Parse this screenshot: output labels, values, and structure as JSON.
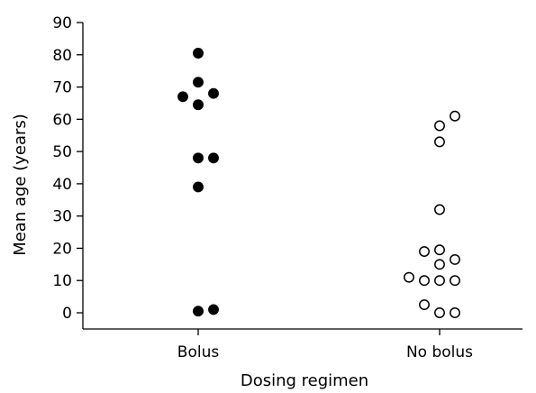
{
  "chart_data": {
    "type": "scatter",
    "xlabel": "Dosing regimen",
    "ylabel": "Mean age (years)",
    "categories": [
      "Bolus",
      "No bolus"
    ],
    "ylim": [
      0,
      90
    ],
    "yticks": [
      "0",
      "10",
      "20",
      "30",
      "40",
      "50",
      "60",
      "70",
      "80",
      "90"
    ],
    "grid": false,
    "series": [
      {
        "category": "Bolus",
        "marker": "filled-circle",
        "color": "#000000",
        "points": [
          {
            "offset": 0,
            "y": 80.5
          },
          {
            "offset": 0,
            "y": 71.5
          },
          {
            "offset": -1,
            "y": 67
          },
          {
            "offset": 1,
            "y": 68
          },
          {
            "offset": 0,
            "y": 64.5
          },
          {
            "offset": 0,
            "y": 48
          },
          {
            "offset": 1,
            "y": 48
          },
          {
            "offset": 0,
            "y": 39
          },
          {
            "offset": 0,
            "y": 0.5
          },
          {
            "offset": 1,
            "y": 1
          }
        ]
      },
      {
        "category": "No bolus",
        "marker": "open-circle",
        "color": "#000000",
        "points": [
          {
            "offset": 1,
            "y": 61
          },
          {
            "offset": 0,
            "y": 58
          },
          {
            "offset": 0,
            "y": 53
          },
          {
            "offset": 0,
            "y": 32
          },
          {
            "offset": -1,
            "y": 19
          },
          {
            "offset": 0,
            "y": 19.5
          },
          {
            "offset": 1,
            "y": 16.5
          },
          {
            "offset": 0,
            "y": 15
          },
          {
            "offset": -2,
            "y": 11
          },
          {
            "offset": -1,
            "y": 10
          },
          {
            "offset": 0,
            "y": 10
          },
          {
            "offset": 1,
            "y": 10
          },
          {
            "offset": -1,
            "y": 2.5
          },
          {
            "offset": 0,
            "y": 0
          },
          {
            "offset": 1,
            "y": 0
          }
        ]
      }
    ]
  }
}
